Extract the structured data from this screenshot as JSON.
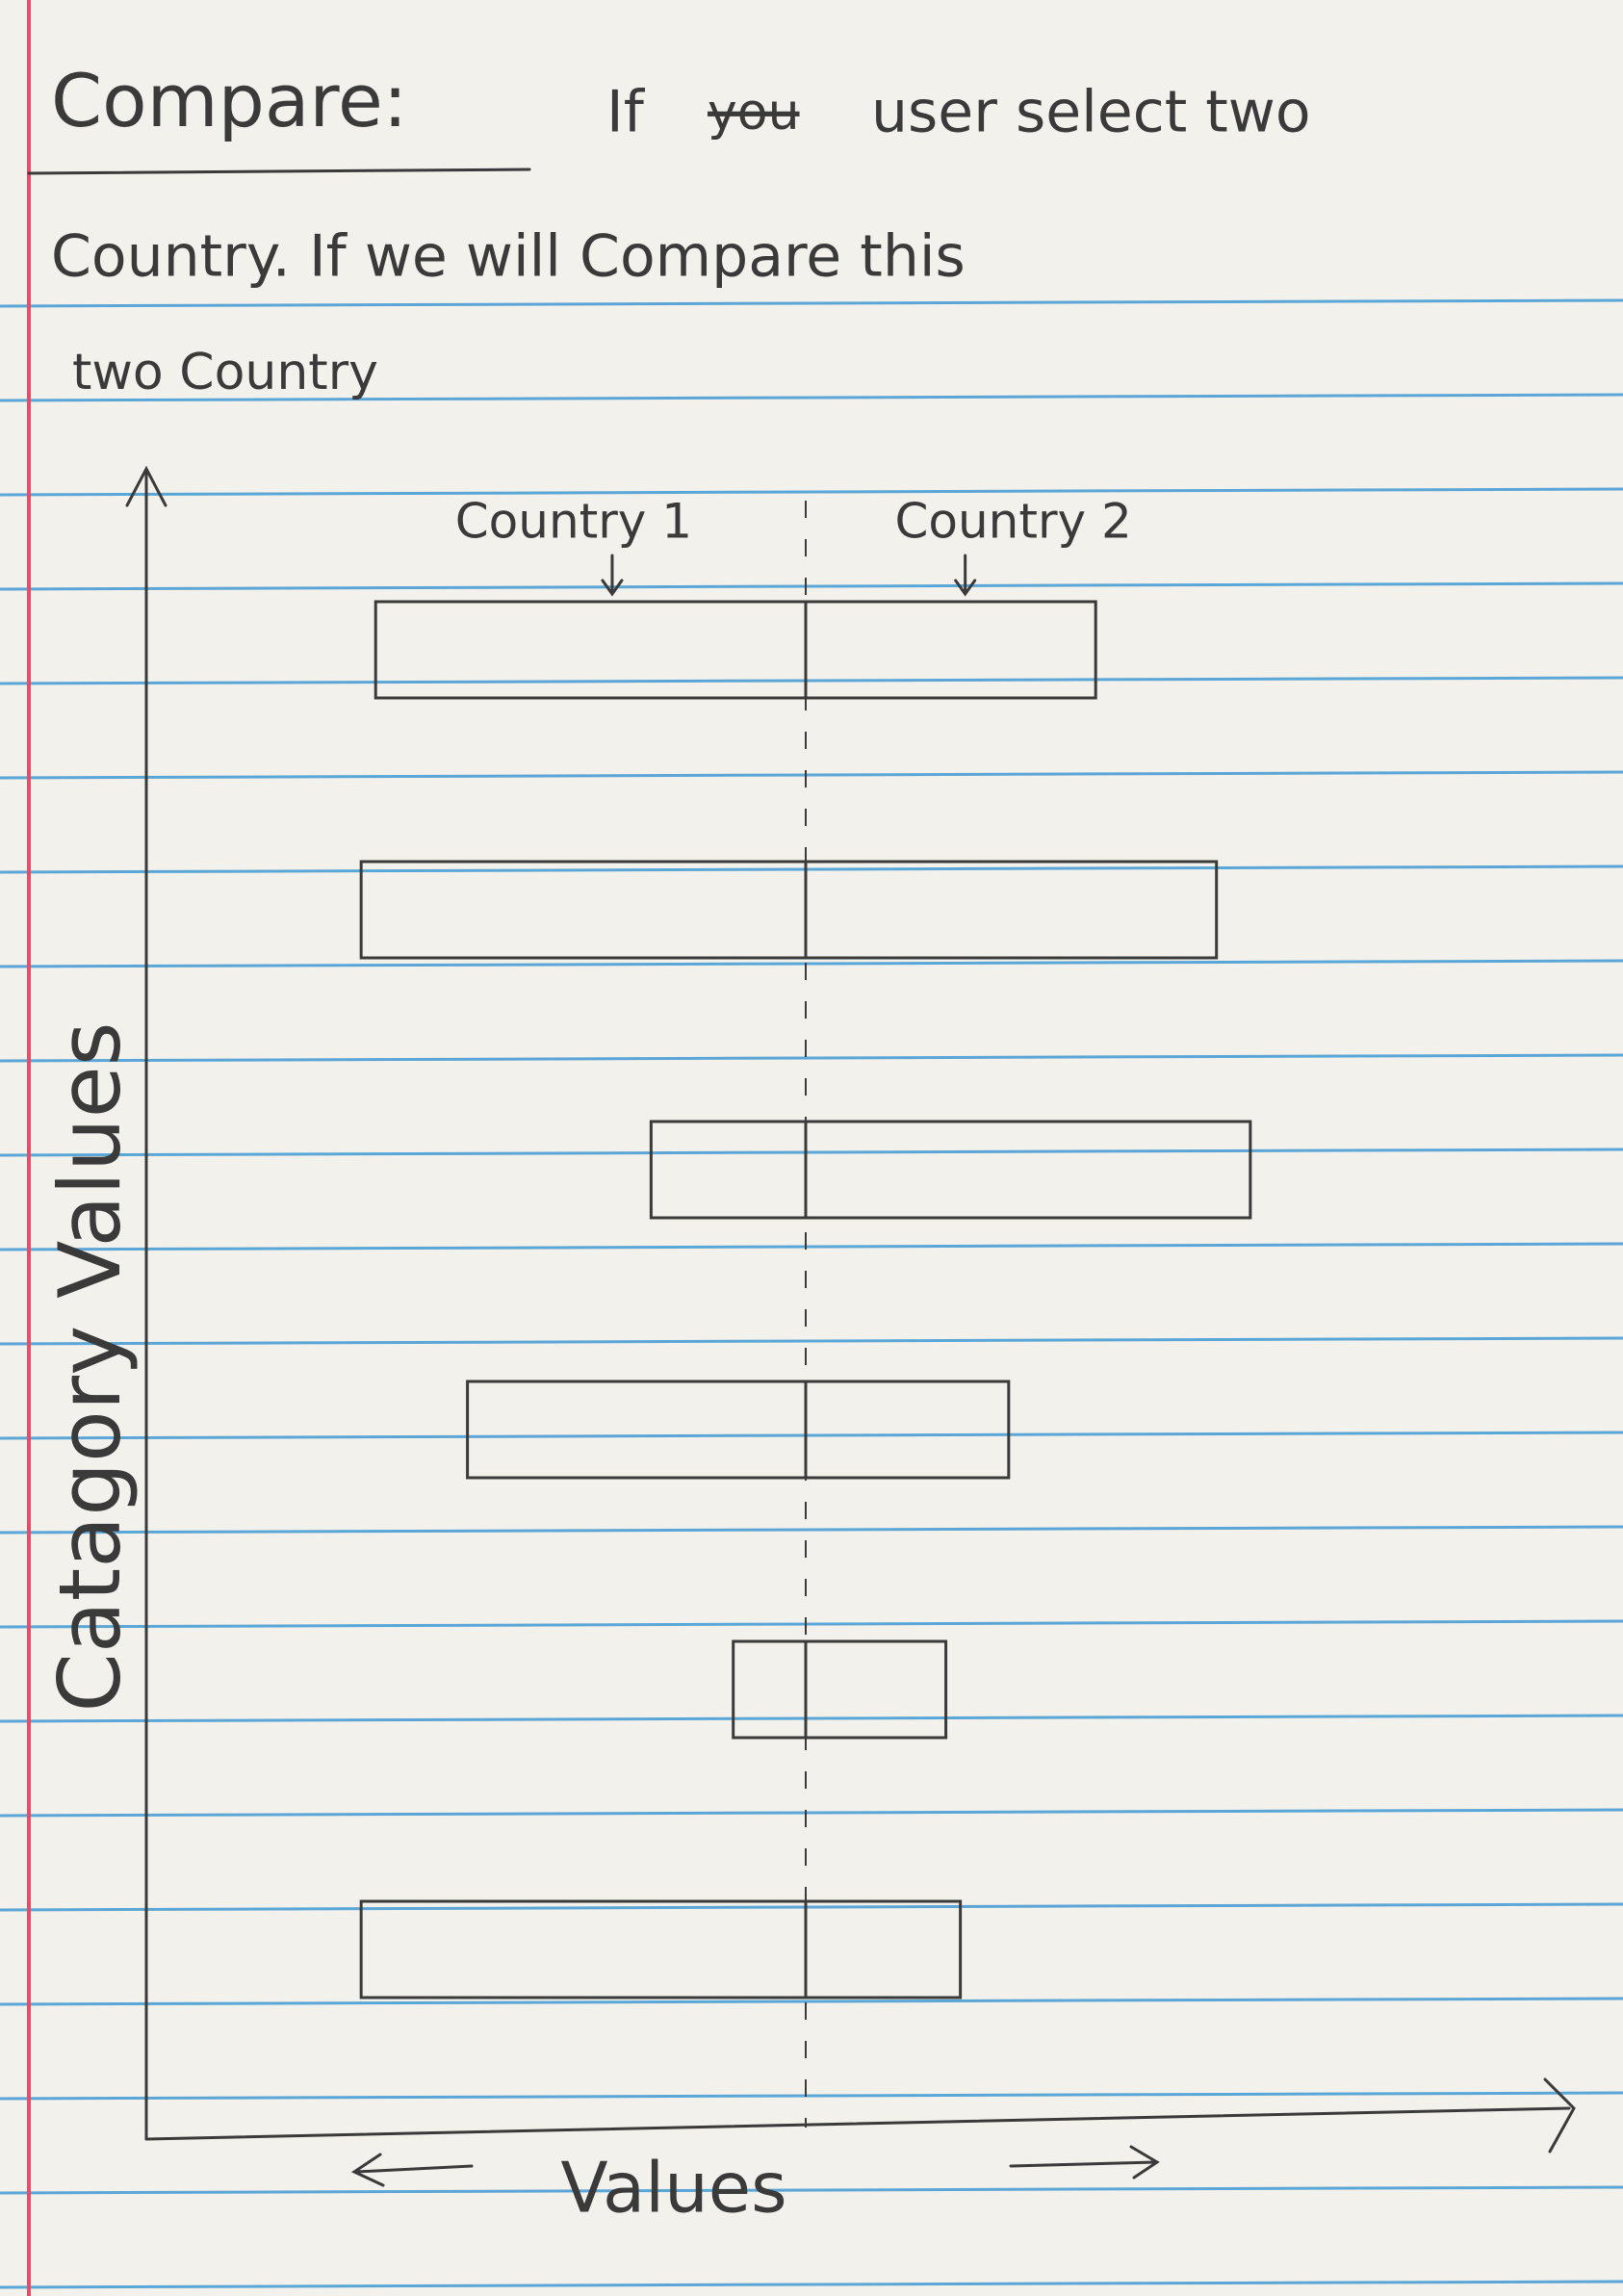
{
  "chart_data": {
    "type": "diverging_bar",
    "title": "Compare:",
    "annotations": [
      "If",
      "you",
      "user select two",
      "Country. If we will Compare this",
      "two Country"
    ],
    "struck_annotation": 1,
    "x_label": "Values",
    "y_label": "Catagory Values",
    "categories": [
      null,
      null,
      null,
      null,
      null,
      null
    ],
    "series": [
      {
        "name": "Country 1",
        "color": "#3a3a3a",
        "values": [
          89,
          92,
          32,
          70,
          15,
          92
        ]
      },
      {
        "name": "Country 2",
        "color": "#3a3a3a",
        "values": [
          60,
          85,
          92,
          42,
          29,
          32
        ]
      }
    ],
    "xlim": [
      0,
      100
    ]
  }
}
